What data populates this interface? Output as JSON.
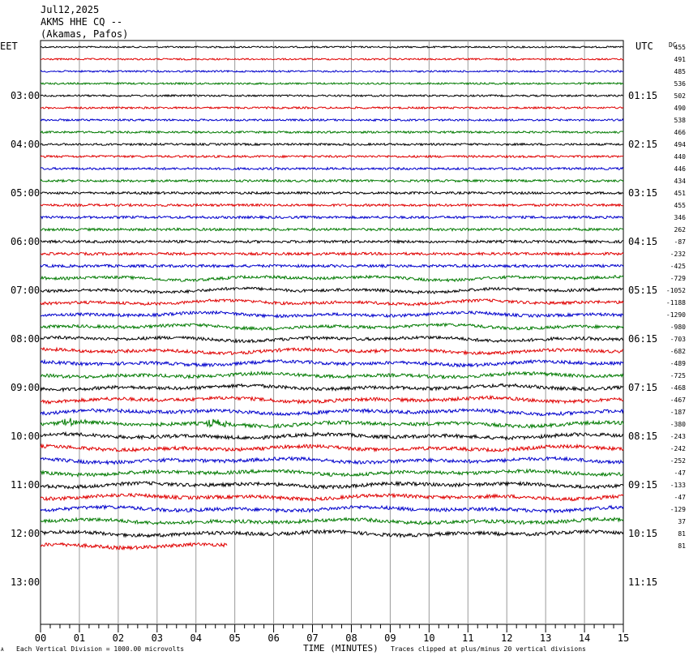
{
  "header": {
    "date": "Jul12,2025",
    "station": "AKMS HHE CQ --",
    "location": "(Akamas, Pafos)"
  },
  "left_zone_label": "EET",
  "right_zone_label": "UTC",
  "dc_label": "DC",
  "footer": {
    "scale_note": "Each Vertical Division = 1000.00 microvolts",
    "xlabel": "TIME (MINUTES)",
    "clip_note": "Traces clipped at plus/minus 20 vertical divisions",
    "corner_mark": "A"
  },
  "colors": {
    "trace_cycle": [
      "#000000",
      "#e00000",
      "#0000cc",
      "#007a00"
    ],
    "grid": "#9a9a9a",
    "frame": "#000000"
  },
  "chart_data": {
    "type": "line",
    "title": "AKMS HHE CQ --",
    "xlabel": "TIME (MINUTES)",
    "xlim": [
      0,
      15
    ],
    "x_tick_labels": [
      "00",
      "01",
      "02",
      "03",
      "04",
      "05",
      "06",
      "07",
      "08",
      "09",
      "10",
      "11",
      "12",
      "13",
      "14",
      "15"
    ],
    "rows_per_hour": 4,
    "left_hour_labels": [
      "03:00",
      "04:00",
      "05:00",
      "06:00",
      "07:00",
      "08:00",
      "09:00",
      "10:00",
      "11:00",
      "12:00",
      "13:00"
    ],
    "right_hour_labels": [
      "01:15",
      "02:15",
      "03:15",
      "04:15",
      "05:15",
      "06:15",
      "07:15",
      "08:15",
      "09:15",
      "10:15",
      "11:15"
    ],
    "dc_offsets": [
      455,
      491,
      485,
      536,
      502,
      490,
      538,
      466,
      494,
      440,
      446,
      434,
      451,
      455,
      346,
      262,
      -87,
      -232,
      -425,
      -729,
      -1052,
      -1188,
      -1290,
      -980,
      -703,
      -682,
      -489,
      -725,
      -468,
      -467,
      -187,
      -380,
      -243,
      -242,
      -252,
      -47,
      -133,
      -47,
      -129,
      37,
      81,
      81
    ],
    "last_trace_end_minute": 4.8,
    "event_marks": [
      {
        "row": 31,
        "minute": 0.8,
        "label": "burst"
      },
      {
        "row": 31,
        "minute": 4.5,
        "label": "burst"
      }
    ],
    "grid": true,
    "legend": "none"
  }
}
